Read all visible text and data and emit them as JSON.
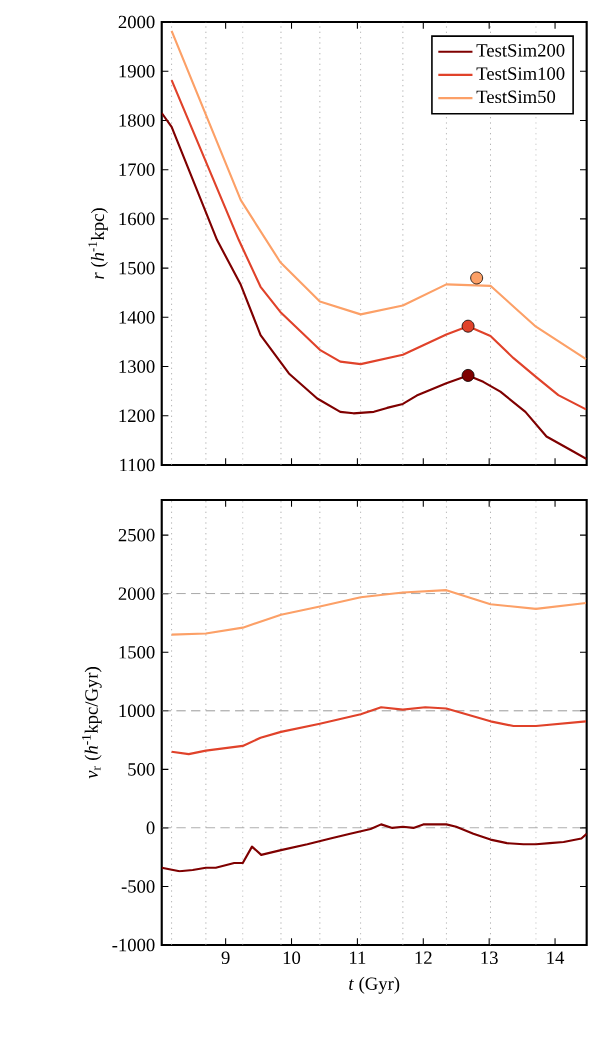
{
  "chart_data": [
    {
      "type": "line",
      "ylabel": "*r* (*h*$^{-1}$kpc)",
      "xlim": [
        8.03,
        14.48
      ],
      "xticks": [
        9,
        10,
        11,
        12,
        13,
        14
      ],
      "ylim": [
        1100,
        2000
      ],
      "yticks": [
        1100,
        1200,
        1300,
        1400,
        1500,
        1600,
        1700,
        1800,
        1900,
        2000
      ],
      "tick_labels": "y",
      "legend": "top right",
      "grid": false,
      "line_style": "solid",
      "series": [
        {
          "name": "TestSim200",
          "color": "#7f0000",
          "x": [
            8.03,
            8.18,
            8.87,
            9.23,
            9.53,
            9.96,
            10.39,
            10.74,
            10.94,
            11.25,
            11.45,
            11.69,
            11.9,
            12.35,
            12.68,
            12.91,
            13.17,
            13.55,
            13.87,
            14.23,
            14.48
          ],
          "values": [
            1815,
            1787,
            1557,
            1466,
            1364,
            1286,
            1235,
            1208,
            1205,
            1208,
            1216,
            1224,
            1241,
            1266,
            1282,
            1269,
            1249,
            1208,
            1158,
            1131,
            1112
          ]
        },
        {
          "name": "TestSim100",
          "color": "#e0422a",
          "x": [
            8.18,
            9.2,
            9.53,
            9.83,
            10.43,
            10.74,
            11.05,
            11.69,
            12.35,
            12.68,
            13.02,
            13.37,
            13.71,
            14.05,
            14.47
          ],
          "values": [
            1882,
            1557,
            1462,
            1411,
            1334,
            1310,
            1305,
            1324,
            1365,
            1382,
            1362,
            1317,
            1279,
            1242,
            1213
          ]
        },
        {
          "name": "TestSim50",
          "color": "#fca067",
          "x": [
            8.18,
            9.23,
            9.83,
            10.43,
            11.05,
            11.69,
            12.35,
            13.02,
            13.71,
            14.47
          ],
          "values": [
            1982,
            1638,
            1512,
            1432,
            1406,
            1424,
            1467,
            1464,
            1381,
            1315
          ]
        },
        {
          "type": "scatter",
          "color": "#7f0000",
          "x": [
            12.68
          ],
          "values": [
            1282
          ]
        },
        {
          "type": "scatter",
          "color": "#e0422a",
          "x": [
            12.68
          ],
          "values": [
            1382
          ]
        },
        {
          "type": "scatter",
          "color": "#fca067",
          "x": [
            12.81
          ],
          "values": [
            1480
          ]
        }
      ],
      "ref_lines": [
        {
          "axis": "x",
          "value": 8.18,
          "line_style": "dotted",
          "color": "#a0a0a0"
        },
        {
          "axis": "x",
          "value": 8.7,
          "line_style": "dotted",
          "color": "#a0a0a0"
        },
        {
          "axis": "x",
          "value": 9.26,
          "line_style": "dotted",
          "color": "#a0a0a0"
        },
        {
          "axis": "x",
          "value": 9.84,
          "line_style": "dotted",
          "color": "#a0a0a0"
        },
        {
          "axis": "x",
          "value": 10.43,
          "line_style": "dotted",
          "color": "#a0a0a0"
        },
        {
          "axis": "x",
          "value": 11.05,
          "line_style": "dotted",
          "color": "#a0a0a0"
        },
        {
          "axis": "x",
          "value": 11.69,
          "line_style": "dotted",
          "color": "#a0a0a0"
        },
        {
          "axis": "x",
          "value": 12.35,
          "line_style": "dotted",
          "color": "#a0a0a0"
        },
        {
          "axis": "x",
          "value": 13.02,
          "line_style": "dotted",
          "color": "#a0a0a0"
        },
        {
          "axis": "x",
          "value": 13.71,
          "line_style": "dotted",
          "color": "#a0a0a0"
        }
      ]
    },
    {
      "type": "line",
      "xlabel": "*t* (Gyr)",
      "ylabel": "*v*$_{r}$ (*h*$^{-1}$kpc/Gyr)",
      "xlim": [
        8.03,
        14.48
      ],
      "xticks": [
        9,
        10,
        11,
        12,
        13,
        14
      ],
      "ylim": [
        -1000,
        2800
      ],
      "yticks": [
        -1000,
        -500,
        0,
        500,
        1000,
        1500,
        2000,
        2500
      ],
      "grid": false,
      "legend": false,
      "line_style": "solid",
      "series": [
        {
          "color": "#7f0000",
          "x": [
            8.03,
            8.3,
            8.5,
            8.7,
            8.85,
            9.13,
            9.26,
            9.4,
            9.54,
            9.84,
            10.24,
            10.59,
            10.89,
            11.2,
            11.36,
            11.53,
            11.69,
            11.85,
            12.0,
            12.35,
            12.5,
            12.76,
            13.02,
            13.27,
            13.52,
            13.71,
            13.92,
            14.13,
            14.4,
            14.48
          ],
          "values": [
            -340,
            -370,
            -360,
            -340,
            -340,
            -300,
            -300,
            -160,
            -230,
            -190,
            -140,
            -90,
            -50,
            -10,
            30,
            0,
            10,
            0,
            30,
            30,
            10,
            -50,
            -100,
            -130,
            -140,
            -140,
            -130,
            -120,
            -90,
            -50
          ]
        },
        {
          "color": "#e0422a",
          "x": [
            8.18,
            8.44,
            8.7,
            9.26,
            9.53,
            9.84,
            10.43,
            11.05,
            11.36,
            11.69,
            12.03,
            12.35,
            13.02,
            13.37,
            13.71,
            14.47
          ],
          "values": [
            650,
            630,
            660,
            700,
            770,
            820,
            890,
            970,
            1030,
            1010,
            1030,
            1020,
            910,
            870,
            870,
            910
          ]
        },
        {
          "color": "#fca067",
          "x": [
            8.18,
            8.7,
            9.26,
            9.84,
            10.43,
            11.05,
            11.69,
            12.35,
            13.02,
            13.71,
            14.47
          ],
          "values": [
            1650,
            1660,
            1710,
            1820,
            1890,
            1970,
            2010,
            2030,
            1910,
            1870,
            1920
          ]
        }
      ],
      "ref_lines": [
        {
          "axis": "x",
          "value": 8.18,
          "line_style": "dotted",
          "color": "#a0a0a0"
        },
        {
          "axis": "x",
          "value": 8.7,
          "line_style": "dotted",
          "color": "#a0a0a0"
        },
        {
          "axis": "x",
          "value": 9.26,
          "line_style": "dotted",
          "color": "#a0a0a0"
        },
        {
          "axis": "x",
          "value": 9.84,
          "line_style": "dotted",
          "color": "#a0a0a0"
        },
        {
          "axis": "x",
          "value": 10.43,
          "line_style": "dotted",
          "color": "#a0a0a0"
        },
        {
          "axis": "x",
          "value": 11.05,
          "line_style": "dotted",
          "color": "#a0a0a0"
        },
        {
          "axis": "x",
          "value": 11.69,
          "line_style": "dotted",
          "color": "#a0a0a0"
        },
        {
          "axis": "x",
          "value": 12.35,
          "line_style": "dotted",
          "color": "#a0a0a0"
        },
        {
          "axis": "x",
          "value": 13.02,
          "line_style": "dotted",
          "color": "#a0a0a0"
        },
        {
          "axis": "x",
          "value": 13.71,
          "line_style": "dotted",
          "color": "#a0a0a0"
        },
        {
          "axis": "y",
          "value": 0,
          "line_style": "dashed",
          "color": "#808080"
        },
        {
          "axis": "y",
          "value": 1000,
          "line_style": "dashed",
          "color": "#808080"
        },
        {
          "axis": "y",
          "value": 2000,
          "line_style": "dashed",
          "color": "#808080"
        }
      ]
    }
  ]
}
